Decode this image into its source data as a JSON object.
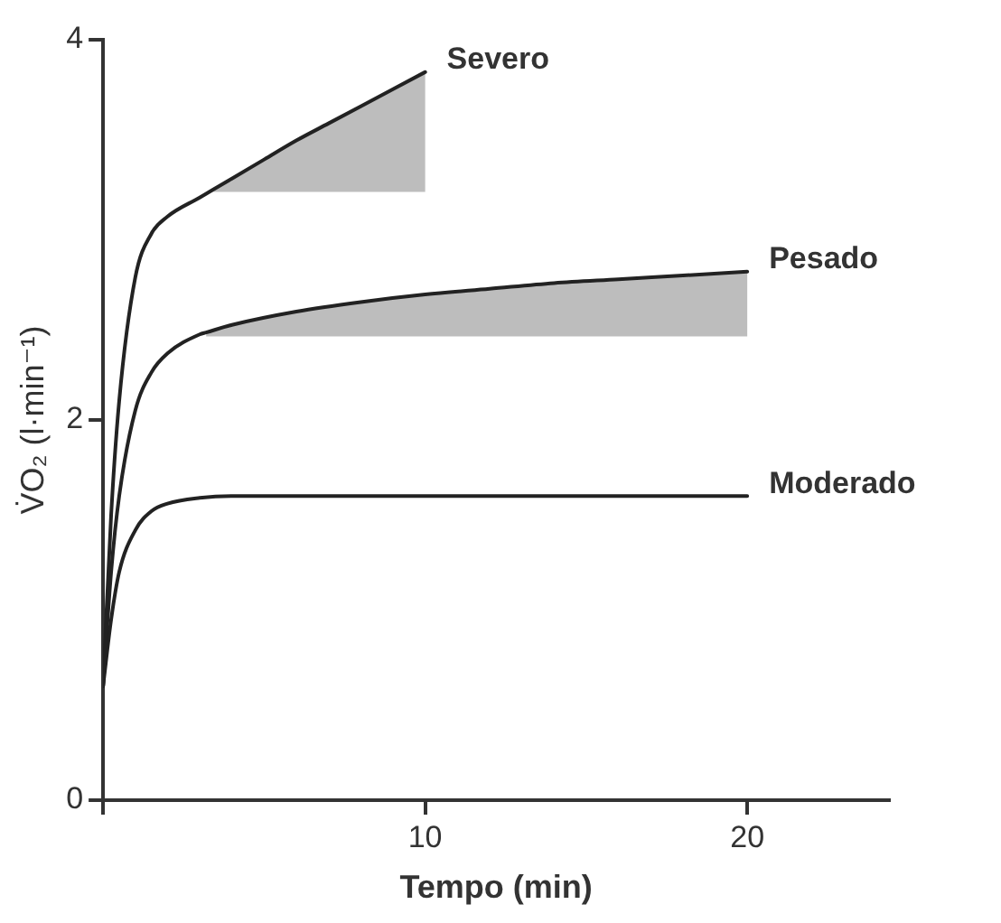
{
  "chart_data": {
    "type": "line",
    "xlabel": "Tempo (min)",
    "ylabel": "V̇O₂ (l·min⁻¹)",
    "xlim": [
      0,
      24.4
    ],
    "xticks": [
      {
        "value": 0,
        "label": null
      },
      10,
      20
    ],
    "ylim": [
      0,
      4
    ],
    "yticks": [
      0,
      2,
      4
    ],
    "grid": false,
    "legend": false,
    "marker": "none",
    "series": [
      {
        "name": "Severo",
        "color": "#222222",
        "x": [
          0,
          0.25,
          0.5,
          1,
          1.5,
          2,
          3,
          3.4,
          4,
          5,
          6,
          7,
          8,
          9,
          10
        ],
        "values": [
          0.6,
          1.5,
          2.1,
          2.75,
          2.98,
          3.07,
          3.17,
          3.21,
          3.27,
          3.37,
          3.47,
          3.56,
          3.65,
          3.74,
          3.83
        ],
        "lower": [
          null,
          null,
          null,
          null,
          null,
          null,
          null,
          3.2,
          3.2,
          3.2,
          3.2,
          3.2,
          3.2,
          3.2,
          3.2
        ],
        "upper": [
          null,
          null,
          null,
          null,
          null,
          null,
          null,
          3.21,
          3.27,
          3.37,
          3.47,
          3.56,
          3.65,
          3.74,
          3.83
        ]
      },
      {
        "name": "Pesado",
        "color": "#222222",
        "x": [
          0,
          0.25,
          0.5,
          1,
          1.5,
          2,
          3,
          3.2,
          4,
          6,
          8,
          10,
          12,
          14,
          16,
          18,
          20
        ],
        "values": [
          0.6,
          1.2,
          1.6,
          2.05,
          2.25,
          2.35,
          2.45,
          2.46,
          2.5,
          2.57,
          2.62,
          2.66,
          2.69,
          2.72,
          2.74,
          2.76,
          2.78
        ],
        "lower": [
          null,
          null,
          null,
          null,
          null,
          null,
          null,
          2.44,
          2.44,
          2.44,
          2.44,
          2.44,
          2.44,
          2.44,
          2.44,
          2.44,
          2.44
        ],
        "upper": [
          null,
          null,
          null,
          null,
          null,
          null,
          null,
          2.46,
          2.5,
          2.57,
          2.62,
          2.66,
          2.69,
          2.72,
          2.74,
          2.76,
          2.78
        ]
      },
      {
        "name": "Moderado",
        "color": "#222222",
        "x": [
          0,
          0.25,
          0.5,
          1,
          1.5,
          2,
          3,
          4,
          20
        ],
        "values": [
          0.6,
          0.95,
          1.2,
          1.42,
          1.52,
          1.56,
          1.59,
          1.6,
          1.6
        ]
      }
    ]
  }
}
